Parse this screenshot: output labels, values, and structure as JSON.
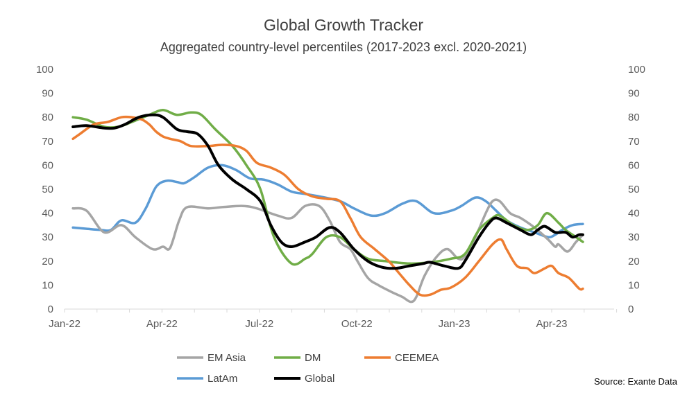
{
  "chart_data": {
    "type": "line",
    "title": "Global Growth Tracker",
    "subtitle": "Aggregated country-level percentiles (2017-2023 excl. 2020-2021)",
    "x_unit": "months since Jan-2022",
    "xlim": [
      0,
      17
    ],
    "ylim": [
      0,
      100
    ],
    "y_ticks": [
      "0",
      "10",
      "20",
      "30",
      "40",
      "50",
      "60",
      "70",
      "80",
      "90",
      "100"
    ],
    "x_ticks": [
      {
        "label": "Jan-22",
        "value": 0
      },
      {
        "label": "Apr-22",
        "value": 3
      },
      {
        "label": "Jul-22",
        "value": 6
      },
      {
        "label": "Oct-22",
        "value": 9
      },
      {
        "label": "Jan-23",
        "value": 12
      },
      {
        "label": "Apr-23",
        "value": 15
      }
    ],
    "grid": false,
    "legend_position": "bottom",
    "series": [
      {
        "name": "EM Asia",
        "color": "#a5a5a5",
        "points": [
          [
            0.26,
            42
          ],
          [
            0.68,
            41
          ],
          [
            1.22,
            32
          ],
          [
            1.75,
            35
          ],
          [
            2.18,
            30
          ],
          [
            2.71,
            25
          ],
          [
            3.03,
            26
          ],
          [
            3.25,
            25.5
          ],
          [
            3.53,
            37
          ],
          [
            3.78,
            42.5
          ],
          [
            4.42,
            42
          ],
          [
            4.85,
            42.5
          ],
          [
            5.49,
            43
          ],
          [
            5.92,
            42
          ],
          [
            6.56,
            39
          ],
          [
            6.99,
            38
          ],
          [
            7.41,
            43
          ],
          [
            7.84,
            43
          ],
          [
            8.16,
            37
          ],
          [
            8.48,
            28
          ],
          [
            8.8,
            25
          ],
          [
            9.02,
            20
          ],
          [
            9.34,
            13
          ],
          [
            9.66,
            10
          ],
          [
            10.09,
            7
          ],
          [
            10.41,
            5
          ],
          [
            10.66,
            3
          ],
          [
            10.83,
            5
          ],
          [
            11.09,
            14
          ],
          [
            11.47,
            22
          ],
          [
            11.79,
            25
          ],
          [
            12.12,
            21
          ],
          [
            12.33,
            22
          ],
          [
            12.65,
            30
          ],
          [
            12.97,
            40
          ],
          [
            13.18,
            45
          ],
          [
            13.4,
            45
          ],
          [
            13.72,
            40
          ],
          [
            14.04,
            38
          ],
          [
            14.47,
            34
          ],
          [
            14.89,
            29
          ],
          [
            15.11,
            26
          ],
          [
            15.21,
            27
          ],
          [
            15.49,
            24
          ],
          [
            15.75,
            28
          ],
          [
            15.96,
            31
          ]
        ]
      },
      {
        "name": "DM",
        "color": "#70ad47",
        "points": [
          [
            0.26,
            80
          ],
          [
            0.68,
            79
          ],
          [
            1.22,
            76
          ],
          [
            1.65,
            76
          ],
          [
            2.07,
            78
          ],
          [
            2.61,
            81
          ],
          [
            3.03,
            83
          ],
          [
            3.46,
            81
          ],
          [
            3.89,
            82
          ],
          [
            4.21,
            81
          ],
          [
            4.64,
            75
          ],
          [
            5.17,
            68
          ],
          [
            5.6,
            60
          ],
          [
            6.03,
            50
          ],
          [
            6.45,
            30
          ],
          [
            6.99,
            19
          ],
          [
            7.41,
            21
          ],
          [
            7.63,
            23
          ],
          [
            8.06,
            30
          ],
          [
            8.48,
            30
          ],
          [
            8.91,
            25
          ],
          [
            9.34,
            21
          ],
          [
            9.87,
            20
          ],
          [
            10.62,
            19
          ],
          [
            11.26,
            19.5
          ],
          [
            11.9,
            21
          ],
          [
            12.33,
            23
          ],
          [
            12.76,
            33
          ],
          [
            13.18,
            38
          ],
          [
            13.4,
            39
          ],
          [
            13.82,
            35
          ],
          [
            14.25,
            33
          ],
          [
            14.57,
            35
          ],
          [
            14.85,
            40
          ],
          [
            15.21,
            36
          ],
          [
            15.43,
            33
          ],
          [
            15.75,
            30
          ],
          [
            15.96,
            28
          ]
        ]
      },
      {
        "name": "CEEMEA",
        "color": "#ed7d31",
        "points": [
          [
            0.26,
            71
          ],
          [
            0.47,
            73
          ],
          [
            0.9,
            77
          ],
          [
            1.32,
            78
          ],
          [
            1.75,
            80
          ],
          [
            2.07,
            80
          ],
          [
            2.39,
            79
          ],
          [
            2.61,
            77
          ],
          [
            2.82,
            74
          ],
          [
            3.03,
            72
          ],
          [
            3.25,
            71
          ],
          [
            3.57,
            70
          ],
          [
            3.89,
            68
          ],
          [
            4.42,
            68
          ],
          [
            4.85,
            68.5
          ],
          [
            5.28,
            68
          ],
          [
            5.6,
            66
          ],
          [
            5.92,
            61
          ],
          [
            6.35,
            59
          ],
          [
            6.77,
            56
          ],
          [
            7.2,
            50
          ],
          [
            7.63,
            47
          ],
          [
            8.06,
            46
          ],
          [
            8.48,
            45
          ],
          [
            8.8,
            38
          ],
          [
            9.12,
            30
          ],
          [
            9.55,
            25
          ],
          [
            9.98,
            20
          ],
          [
            10.3,
            15
          ],
          [
            10.62,
            10
          ],
          [
            10.94,
            6
          ],
          [
            11.26,
            6
          ],
          [
            11.58,
            8
          ],
          [
            11.9,
            9
          ],
          [
            12.33,
            13
          ],
          [
            12.76,
            20
          ],
          [
            13.18,
            27
          ],
          [
            13.44,
            29
          ],
          [
            13.61,
            25
          ],
          [
            13.93,
            18
          ],
          [
            14.25,
            17
          ],
          [
            14.47,
            15
          ],
          [
            14.79,
            17
          ],
          [
            15.0,
            18
          ],
          [
            15.21,
            15
          ],
          [
            15.53,
            13
          ],
          [
            15.85,
            8.5
          ],
          [
            15.96,
            8.5
          ]
        ]
      },
      {
        "name": "LatAm",
        "color": "#5b9bd5",
        "points": [
          [
            0.26,
            34
          ],
          [
            0.68,
            33.5
          ],
          [
            1.11,
            33
          ],
          [
            1.43,
            33
          ],
          [
            1.75,
            37
          ],
          [
            2.18,
            36
          ],
          [
            2.5,
            42
          ],
          [
            2.82,
            51
          ],
          [
            3.14,
            53.5
          ],
          [
            3.46,
            53
          ],
          [
            3.68,
            52.5
          ],
          [
            4.0,
            55
          ],
          [
            4.42,
            59
          ],
          [
            4.85,
            60
          ],
          [
            5.28,
            58
          ],
          [
            5.71,
            54.5
          ],
          [
            6.13,
            54
          ],
          [
            6.56,
            52
          ],
          [
            6.99,
            49
          ],
          [
            7.41,
            48
          ],
          [
            7.84,
            47
          ],
          [
            8.48,
            45
          ],
          [
            8.91,
            42
          ],
          [
            9.44,
            39
          ],
          [
            9.87,
            40
          ],
          [
            10.41,
            44
          ],
          [
            10.83,
            45
          ],
          [
            11.37,
            40
          ],
          [
            11.9,
            41
          ],
          [
            12.22,
            43
          ],
          [
            12.65,
            46.5
          ],
          [
            12.97,
            45
          ],
          [
            13.29,
            41
          ],
          [
            13.61,
            37
          ],
          [
            14.04,
            34
          ],
          [
            14.47,
            32
          ],
          [
            14.89,
            30
          ],
          [
            15.11,
            31
          ],
          [
            15.32,
            33
          ],
          [
            15.64,
            35
          ],
          [
            15.96,
            35.5
          ]
        ]
      },
      {
        "name": "Global",
        "color": "#000000",
        "points": [
          [
            0.26,
            76
          ],
          [
            0.68,
            76.5
          ],
          [
            1.22,
            75.5
          ],
          [
            1.54,
            75.5
          ],
          [
            1.86,
            77
          ],
          [
            2.29,
            80
          ],
          [
            2.71,
            81
          ],
          [
            3.03,
            80
          ],
          [
            3.46,
            75
          ],
          [
            3.78,
            74
          ],
          [
            4.1,
            73
          ],
          [
            4.42,
            68
          ],
          [
            4.74,
            60
          ],
          [
            5.17,
            54
          ],
          [
            5.6,
            50
          ],
          [
            6.03,
            45
          ],
          [
            6.35,
            35
          ],
          [
            6.67,
            28
          ],
          [
            6.99,
            26
          ],
          [
            7.41,
            28
          ],
          [
            7.74,
            30
          ],
          [
            8.16,
            34
          ],
          [
            8.48,
            32
          ],
          [
            8.91,
            25
          ],
          [
            9.34,
            20
          ],
          [
            9.76,
            17.5
          ],
          [
            10.19,
            17
          ],
          [
            10.62,
            18
          ],
          [
            11.05,
            19
          ],
          [
            11.26,
            19.5
          ],
          [
            11.69,
            18
          ],
          [
            12.12,
            17
          ],
          [
            12.33,
            20
          ],
          [
            12.76,
            30
          ],
          [
            13.08,
            36
          ],
          [
            13.29,
            38
          ],
          [
            13.61,
            36
          ],
          [
            14.04,
            33
          ],
          [
            14.36,
            31
          ],
          [
            14.57,
            33
          ],
          [
            14.79,
            34.5
          ],
          [
            15.11,
            32
          ],
          [
            15.43,
            32
          ],
          [
            15.64,
            30
          ],
          [
            15.85,
            31
          ],
          [
            15.96,
            31
          ]
        ]
      }
    ],
    "legend_order": [
      "EM Asia",
      "DM",
      "CEEMEA",
      "LatAm",
      "Global"
    ],
    "source": "Source: Exante Data"
  }
}
